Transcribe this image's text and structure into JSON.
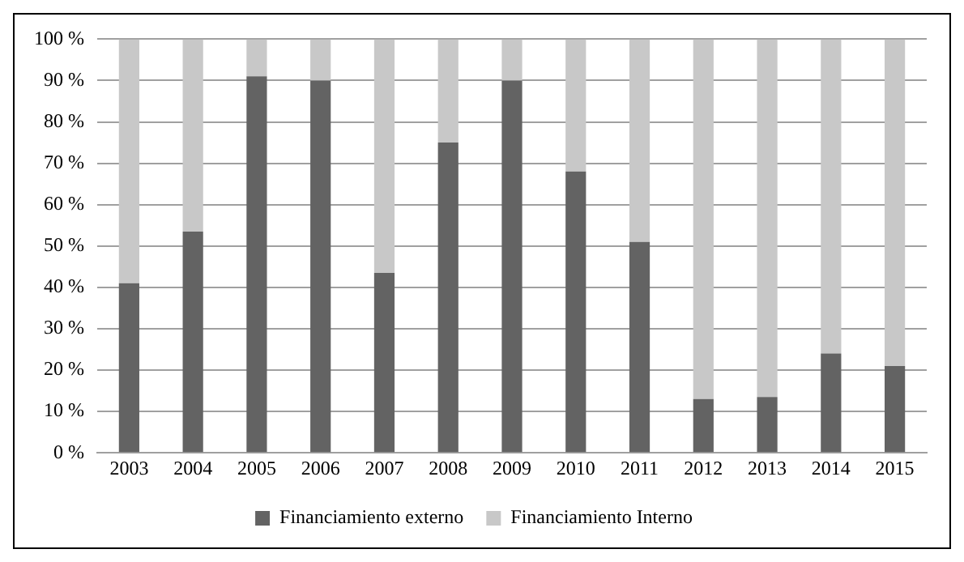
{
  "chart_data": {
    "type": "bar",
    "stacked": true,
    "categories": [
      "2003",
      "2004",
      "2005",
      "2006",
      "2007",
      "2008",
      "2009",
      "2010",
      "2011",
      "2012",
      "2013",
      "2014",
      "2015"
    ],
    "series": [
      {
        "name": "Financiamiento externo",
        "color": "#636363",
        "values": [
          41,
          53.5,
          91,
          90,
          43.5,
          75,
          90,
          68,
          51,
          13,
          13.5,
          24,
          21
        ]
      },
      {
        "name": "Financiamiento Interno",
        "color": "#c8c8c8",
        "values": [
          59,
          46.5,
          9,
          10,
          56.5,
          25,
          10,
          32,
          49,
          87,
          86.5,
          76,
          79
        ]
      }
    ],
    "ylim": [
      0,
      100
    ],
    "yticks": [
      {
        "value": 0,
        "label": "0 %"
      },
      {
        "value": 10,
        "label": "10 %"
      },
      {
        "value": 20,
        "label": "20 %"
      },
      {
        "value": 30,
        "label": "30 %"
      },
      {
        "value": 40,
        "label": "40 %"
      },
      {
        "value": 50,
        "label": "50 %"
      },
      {
        "value": 60,
        "label": "60 %"
      },
      {
        "value": 70,
        "label": "70 %"
      },
      {
        "value": 80,
        "label": "80 %"
      },
      {
        "value": 90,
        "label": "90 %"
      },
      {
        "value": 100,
        "label": "100 %"
      }
    ],
    "grid": "y",
    "legend": "bottom"
  }
}
